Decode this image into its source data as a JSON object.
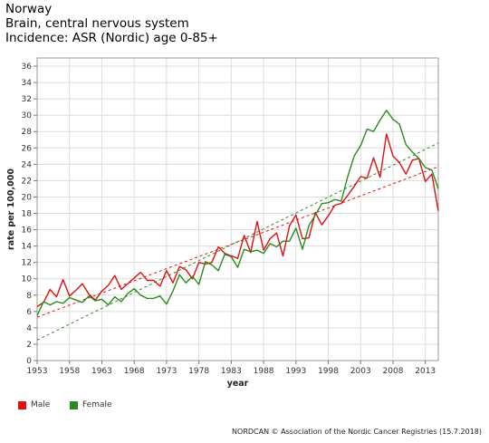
{
  "titles": {
    "line1": "Norway",
    "line2": "Brain, central nervous system",
    "line3": "Incidence: ASR (Nordic) age 0-85+"
  },
  "credit": "NORDCAN © Association of the Nordic Cancer Registries (15.7.2018)",
  "chart_data": {
    "type": "line",
    "xlabel": "year",
    "ylabel": "rate per 100,000",
    "xlim": [
      1953,
      2015
    ],
    "ylim": [
      0,
      37
    ],
    "xticks": [
      1953,
      1958,
      1963,
      1968,
      1973,
      1978,
      1983,
      1988,
      1993,
      1998,
      2003,
      2008,
      2013
    ],
    "yticks": [
      0,
      2,
      4,
      6,
      8,
      10,
      12,
      14,
      16,
      18,
      20,
      22,
      24,
      26,
      28,
      30,
      32,
      34,
      36
    ],
    "grid": true,
    "legend_position": "bottom-left",
    "x": [
      1953,
      1954,
      1955,
      1956,
      1957,
      1958,
      1959,
      1960,
      1961,
      1962,
      1963,
      1964,
      1965,
      1966,
      1967,
      1968,
      1969,
      1970,
      1971,
      1972,
      1973,
      1974,
      1975,
      1976,
      1977,
      1978,
      1979,
      1980,
      1981,
      1982,
      1983,
      1984,
      1985,
      1986,
      1987,
      1988,
      1989,
      1990,
      1991,
      1992,
      1993,
      1994,
      1995,
      1996,
      1997,
      1998,
      1999,
      2000,
      2001,
      2002,
      2003,
      2004,
      2005,
      2006,
      2007,
      2008,
      2009,
      2010,
      2011,
      2012,
      2013,
      2014,
      2015
    ],
    "series": [
      {
        "name": "Male",
        "color": "#dd1111",
        "values": [
          6.6,
          7.1,
          8.7,
          7.8,
          9.9,
          7.9,
          8.6,
          9.4,
          8.1,
          7.4,
          8.5,
          9.2,
          10.4,
          8.7,
          9.4,
          10.1,
          10.8,
          9.8,
          9.8,
          9.1,
          11.0,
          9.5,
          11.5,
          11.1,
          10.0,
          12.0,
          11.8,
          12.0,
          13.9,
          13.1,
          12.8,
          12.5,
          15.3,
          13.2,
          17.0,
          13.5,
          14.9,
          15.6,
          12.8,
          16.5,
          17.8,
          14.9,
          15.0,
          18.1,
          16.6,
          17.7,
          19.0,
          19.2,
          20.2,
          21.3,
          22.5,
          22.3,
          24.8,
          22.4,
          27.7,
          25.0,
          24.2,
          22.8,
          24.5,
          24.7,
          21.9,
          22.8,
          18.3
        ],
        "trend": [
          5.3,
          23.7
        ]
      },
      {
        "name": "Female",
        "color": "#2a8a1f",
        "values": [
          5.5,
          7.2,
          6.8,
          7.2,
          7.0,
          7.7,
          7.4,
          7.1,
          7.9,
          7.3,
          7.5,
          6.8,
          7.8,
          7.2,
          8.2,
          8.8,
          8.0,
          7.6,
          7.6,
          7.9,
          6.9,
          8.5,
          10.5,
          9.5,
          10.3,
          9.3,
          12.1,
          11.7,
          11.0,
          13.0,
          12.7,
          11.4,
          13.6,
          13.3,
          13.5,
          13.1,
          14.3,
          13.9,
          14.6,
          14.6,
          16.2,
          13.6,
          16.5,
          17.8,
          19.2,
          19.3,
          19.7,
          19.5,
          22.5,
          25.0,
          26.3,
          28.3,
          28.0,
          29.4,
          30.6,
          29.5,
          28.9,
          26.4,
          25.5,
          24.7,
          23.6,
          23.3,
          21.0
        ],
        "trend": [
          2.5,
          26.6
        ]
      }
    ]
  }
}
